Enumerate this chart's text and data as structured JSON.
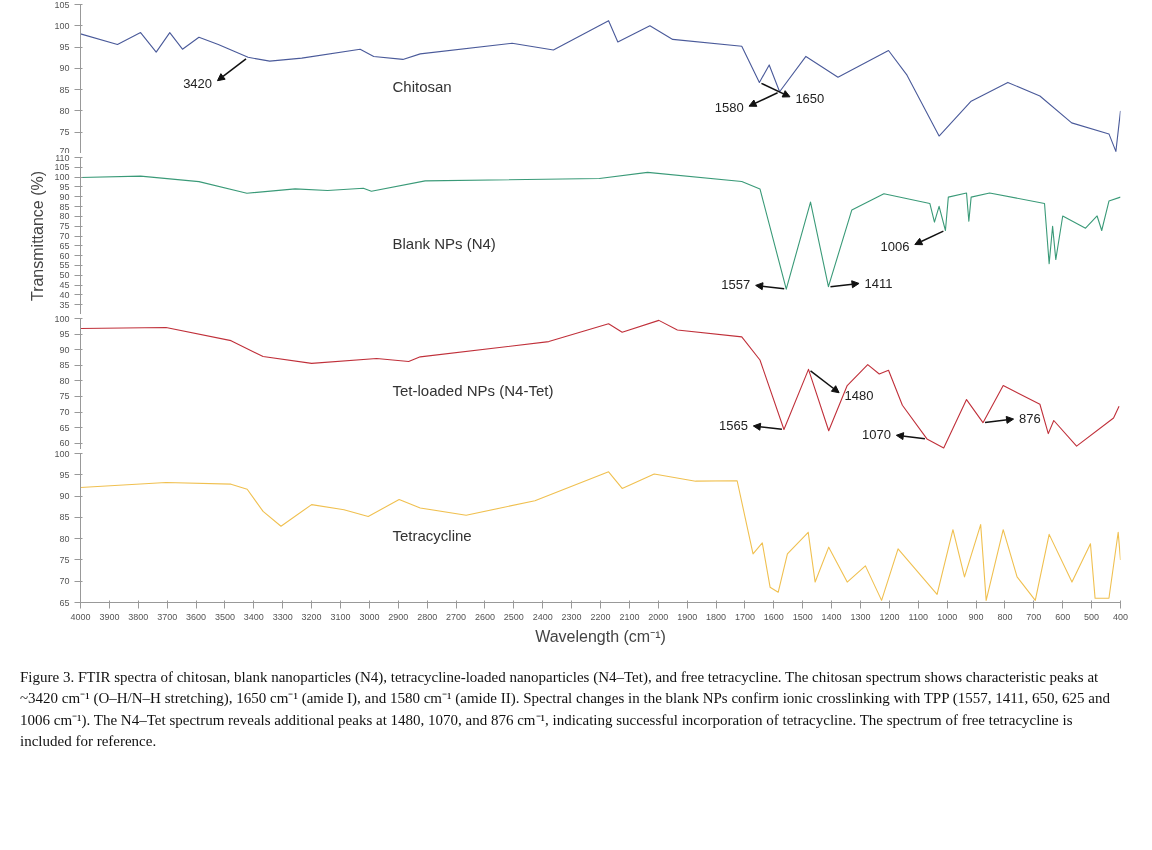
{
  "chart_data": [
    {
      "type": "line",
      "xlim": [
        4000,
        400
      ],
      "xticks": [
        4000,
        3900,
        3800,
        3700,
        3600,
        3500,
        3400,
        3300,
        3200,
        3100,
        3000,
        2900,
        2800,
        2700,
        2600,
        2500,
        2400,
        2300,
        2200,
        2100,
        2000,
        1900,
        1800,
        1700,
        1600,
        1500,
        1400,
        1300,
        1200,
        1100,
        1000,
        900,
        800,
        700,
        600,
        500,
        400
      ],
      "ylim": [
        70,
        105
      ],
      "yticks": [
        70,
        75,
        80,
        85,
        90,
        95,
        100,
        105
      ],
      "tick_labels": "y",
      "series": [
        {
          "name": "Chitosan",
          "color": "#4a5a9a",
          "x": [
            4000,
            3872,
            3792,
            3738,
            3691,
            3647,
            3590,
            3523,
            3420,
            3345,
            3234,
            3032,
            2985,
            2884,
            2824,
            2506,
            2363,
            2172,
            2140,
            2029,
            1950,
            1711,
            1650,
            1616,
            1580,
            1489,
            1378,
            1203,
            1139,
            1028,
            917,
            790,
            679,
            569,
            440,
            416,
            400
          ],
          "values": [
            98.1,
            95.6,
            98.4,
            93.8,
            98.4,
            94.5,
            97.3,
            95.6,
            92.6,
            91.7,
            92.4,
            94.5,
            92.8,
            92.1,
            93.4,
            95.9,
            94.3,
            101.2,
            96.2,
            100,
            96.8,
            95.2,
            86.7,
            90.8,
            84.5,
            92.8,
            87.9,
            94.2,
            88.4,
            74.1,
            82.3,
            86.7,
            83.5,
            77.2,
            74.6,
            70.5,
            80
          ]
        }
      ],
      "annotations": [
        {
          "text": "3420",
          "x": 3420,
          "y": 92.6
        },
        {
          "text": "1650",
          "x": 1650,
          "y": 86.7
        },
        {
          "text": "1580",
          "x": 1580,
          "y": 84.5
        }
      ]
    },
    {
      "type": "line",
      "xlim": [
        4000,
        400
      ],
      "xticks": [
        4000,
        3900,
        3800,
        3700,
        3600,
        3500,
        3400,
        3300,
        3200,
        3100,
        3000,
        2900,
        2800,
        2700,
        2600,
        2500,
        2400,
        2300,
        2200,
        2100,
        2000,
        1900,
        1800,
        1700,
        1600,
        1500,
        1400,
        1300,
        1200,
        1100,
        1000,
        900,
        800,
        700,
        600,
        500,
        400
      ],
      "ylim": [
        30,
        110
      ],
      "yticks": [
        35,
        40,
        45,
        50,
        55,
        60,
        65,
        70,
        75,
        80,
        85,
        90,
        95,
        100,
        105,
        110
      ],
      "tick_labels": "y",
      "ylabel": "Transmittance (%)",
      "series": [
        {
          "name": "Blank NPs (N4)",
          "color": "#3a9a78",
          "x": [
            4000,
            3792,
            3590,
            3424,
            3257,
            3145,
            3021,
            2993,
            2807,
            2204,
            2037,
            1711,
            1648,
            1557,
            1473,
            1411,
            1330,
            1219,
            1060,
            1044,
            1028,
            1006,
            996,
            933,
            925,
            917,
            853,
            663,
            647,
            635,
            624,
            600,
            521,
            481,
            465,
            440,
            400
          ],
          "values": [
            99.8,
            100.5,
            97.7,
            91.8,
            94,
            93.2,
            94.3,
            92.8,
            98.1,
            99.3,
            102.4,
            97.8,
            94,
            42.9,
            87.3,
            44.2,
            83.3,
            91.5,
            86.6,
            77.1,
            85.1,
            72.8,
            89.8,
            91.9,
            77.5,
            89.8,
            91.9,
            86.6,
            55.9,
            74.9,
            58,
            80.2,
            74,
            80.2,
            72.8,
            87.8,
            89.8
          ]
        }
      ],
      "annotations": [
        {
          "text": "1557",
          "x": 1557,
          "y": 43
        },
        {
          "text": "1411",
          "x": 1411,
          "y": 44
        },
        {
          "text": "1006",
          "x": 1006,
          "y": 73
        }
      ]
    },
    {
      "type": "line",
      "xlim": [
        4000,
        400
      ],
      "xticks": [
        4000,
        3900,
        3800,
        3700,
        3600,
        3500,
        3400,
        3300,
        3200,
        3100,
        3000,
        2900,
        2800,
        2700,
        2600,
        2500,
        2400,
        2300,
        2200,
        2100,
        2000,
        1900,
        1800,
        1700,
        1600,
        1500,
        1400,
        1300,
        1200,
        1100,
        1000,
        900,
        800,
        700,
        600,
        500,
        400
      ],
      "ylim": [
        58,
        100
      ],
      "yticks": [
        60,
        65,
        70,
        75,
        80,
        85,
        90,
        95,
        100
      ],
      "tick_labels": "y",
      "series": [
        {
          "name": "Tet-loaded NPs (N4-Tet)",
          "color": "#c0303a",
          "x": [
            4000,
            3704,
            3479,
            3368,
            3200,
            2975,
            2864,
            2824,
            2379,
            2172,
            2125,
            1998,
            1934,
            1711,
            1648,
            1565,
            1480,
            1410,
            1346,
            1275,
            1235,
            1203,
            1155,
            1070,
            1012,
            933,
            876,
            806,
            679,
            650,
            631,
            552,
            424,
            405
          ],
          "values": [
            96.8,
            97.1,
            92.9,
            87.8,
            85.6,
            87.2,
            86.2,
            87.7,
            92.6,
            98.3,
            95.6,
            99.4,
            96.3,
            94.1,
            86.7,
            64.4,
            83.7,
            64,
            78.5,
            85.2,
            82.2,
            83.4,
            72.2,
            61.4,
            58.5,
            74,
            66.6,
            78.5,
            72.5,
            63.1,
            67.3,
            59.1,
            68.1,
            71.9
          ]
        }
      ],
      "annotations": [
        {
          "text": "1565",
          "x": 1565,
          "y": 64.4
        },
        {
          "text": "1480",
          "x": 1480,
          "y": 83.7
        },
        {
          "text": "1070",
          "x": 1070,
          "y": 61.4
        },
        {
          "text": "876",
          "x": 876,
          "y": 66.6
        }
      ]
    },
    {
      "type": "line",
      "xlim": [
        4000,
        400
      ],
      "xticks": [
        4000,
        3900,
        3800,
        3700,
        3600,
        3500,
        3400,
        3300,
        3200,
        3100,
        3000,
        2900,
        2800,
        2700,
        2600,
        2500,
        2400,
        2300,
        2200,
        2100,
        2000,
        1900,
        1800,
        1700,
        1600,
        1500,
        1400,
        1300,
        1200,
        1100,
        1000,
        900,
        800,
        700,
        600,
        500,
        400
      ],
      "ylim": [
        65,
        100
      ],
      "yticks": [
        65,
        70,
        75,
        80,
        85,
        90,
        95,
        100
      ],
      "xlabel": "Wavelength (cm⁻¹)",
      "series": [
        {
          "name": "Tetracycline",
          "color": "#f0c050",
          "x": [
            4000,
            3704,
            3479,
            3423,
            3368,
            3306,
            3200,
            3088,
            3004,
            2897,
            2824,
            2665,
            2427,
            2172,
            2125,
            2014,
            1871,
            1727,
            1672,
            1640,
            1613,
            1585,
            1553,
            1481,
            1457,
            1410,
            1346,
            1283,
            1227,
            1170,
            1035,
            980,
            940,
            884,
            865,
            806,
            758,
            695,
            647,
            568,
            504,
            488,
            440,
            408,
            400
          ],
          "values": [
            92,
            93.2,
            92.8,
            91.6,
            86.4,
            82.9,
            88,
            86.8,
            85.2,
            89.2,
            87.2,
            85.5,
            88.9,
            95.7,
            91.8,
            95.2,
            93.5,
            93.6,
            76.4,
            79,
            68.6,
            67.4,
            76.4,
            81.5,
            69.8,
            78,
            69.8,
            73.6,
            65.5,
            77.6,
            66.9,
            82.1,
            71,
            83.3,
            65.5,
            82.1,
            71,
            65.5,
            81,
            69.8,
            78.8,
            66,
            66,
            81.5,
            75
          ]
        }
      ],
      "annotations": [
        "Figure 3. FTIR spectra of chitosan, blank nanoparticles (N4), tetracycline-loaded nanoparticles (N4–Tet), and free tetracycline. The chitosan spectrum shows characteristic peaks at ~3420 cm⁻¹ (O–H/N–H stretching), 1650 cm⁻¹ (amide I), and 1580 cm⁻¹ (amide II). Spectral changes in the blank NPs confirm ionic crosslinking with TPP (1557, 1411, 650, 625 and 1006 cm⁻¹). The N4–Tet spectrum reveals additional peaks at 1480, 1070, and 876 cm⁻¹, indicating successful incorporation of tetracycline. The spectrum of free tetracycline is included for reference."
      ]
    }
  ]
}
